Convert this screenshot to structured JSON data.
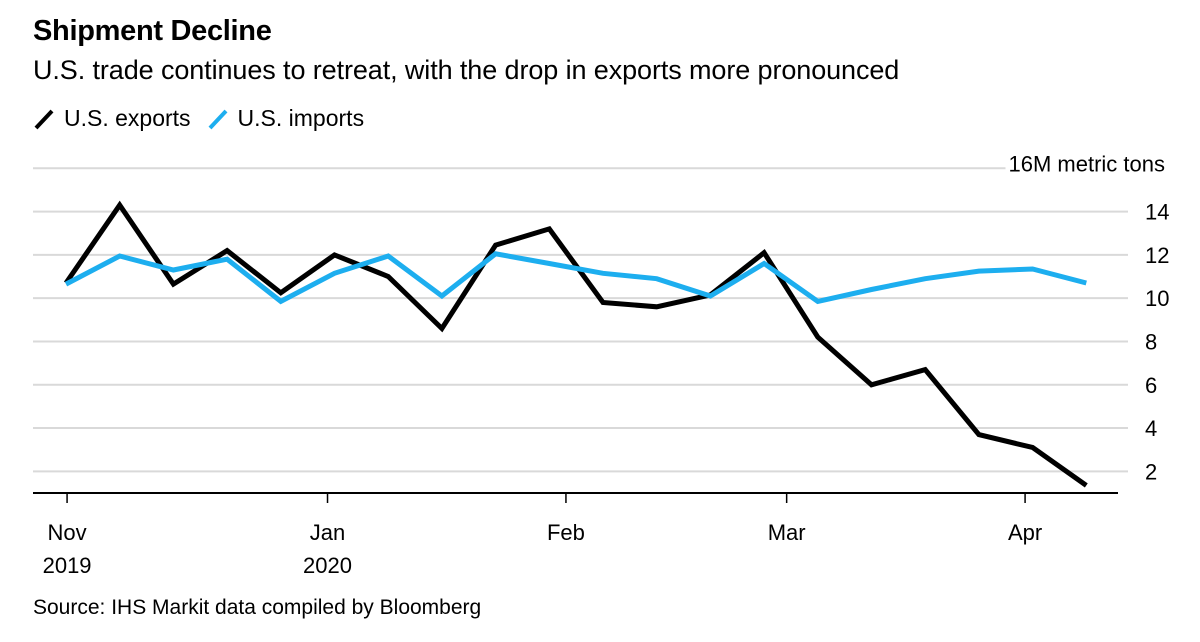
{
  "header": {
    "title": "Shipment Decline",
    "subtitle": "U.S. trade continues to retreat, with the drop in exports more pronounced"
  },
  "legend": [
    {
      "label": "U.S. exports",
      "color": "#000000"
    },
    {
      "label": "U.S. imports",
      "color": "#1DAEEF"
    }
  ],
  "footer": {
    "source": "Source: IHS Markit data compiled by Bloomberg"
  },
  "chart_data": {
    "type": "line",
    "title": "Shipment Decline",
    "subtitle": "U.S. trade continues to retreat, with the drop in exports more pronounced",
    "xlabel": "",
    "ylabel": "M metric tons",
    "y_unit_label": "16M metric tons",
    "ylim": [
      1,
      16
    ],
    "y_ticks": [
      2,
      4,
      6,
      8,
      10,
      12,
      14,
      16
    ],
    "y_tick_labels": [
      "2",
      "4",
      "6",
      "8",
      "10",
      "12",
      "14",
      "16M metric tons"
    ],
    "y_axis_side": "right",
    "grid": true,
    "x_index_range": [
      -0.6,
      19.6
    ],
    "x": [
      0,
      1,
      2,
      3,
      4,
      5,
      6,
      7,
      8,
      9,
      10,
      11,
      12,
      13,
      14,
      15,
      16,
      17,
      18,
      19
    ],
    "x_ticks": [
      {
        "pos": 0.02,
        "label": "Nov",
        "label2": "2019"
      },
      {
        "pos": 4.87,
        "label": "Jan",
        "label2": "2020"
      },
      {
        "pos": 9.31,
        "label": "Feb",
        "label2": ""
      },
      {
        "pos": 13.42,
        "label": "Mar",
        "label2": ""
      },
      {
        "pos": 17.86,
        "label": "Apr",
        "label2": ""
      }
    ],
    "series": [
      {
        "name": "U.S. exports",
        "color": "#000000",
        "values": [
          10.7,
          14.3,
          10.65,
          12.2,
          10.25,
          12.0,
          11.0,
          8.6,
          12.45,
          13.2,
          9.8,
          9.6,
          10.15,
          12.1,
          8.2,
          6.0,
          6.7,
          3.7,
          3.1,
          1.35
        ]
      },
      {
        "name": "U.S. imports",
        "color": "#1DAEEF",
        "values": [
          10.65,
          11.95,
          11.3,
          11.8,
          9.85,
          11.15,
          11.95,
          10.1,
          12.05,
          11.6,
          11.15,
          10.9,
          10.1,
          11.6,
          9.85,
          10.4,
          10.9,
          11.25,
          11.35,
          10.7
        ]
      }
    ],
    "legend_position": "top-left"
  }
}
